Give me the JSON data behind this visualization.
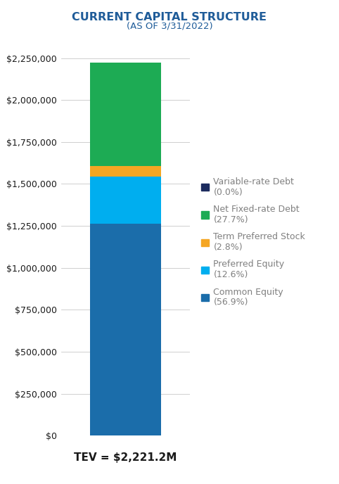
{
  "title": "CURRENT CAPITAL STRUCTURE",
  "subtitle": "(AS OF 3/31/2022)",
  "xlabel": "TEV = $2,221.2M",
  "title_color": "#1F5C99",
  "subtitle_color": "#1F5C99",
  "xlabel_color": "#1a1a1a",
  "ylim": [
    0,
    2250000
  ],
  "yticks": [
    0,
    250000,
    500000,
    750000,
    1000000,
    1250000,
    1500000,
    1750000,
    2000000,
    2250000
  ],
  "segments": [
    {
      "label": "Common Equity\n(56.9%)",
      "value": 1264165,
      "color": "#1B6DAA"
    },
    {
      "label": "Preferred Equity\n(12.6%)",
      "value": 279871,
      "color": "#00AEEF"
    },
    {
      "label": "Term Preferred Stock\n(2.8%)",
      "value": 62194,
      "color": "#F5A623"
    },
    {
      "label": "Net Fixed-rate Debt\n(27.7%)",
      "value": 615272,
      "color": "#1DAB54"
    },
    {
      "label": "Variable-rate Debt\n(0.0%)",
      "value": 800,
      "color": "#1C2B5E"
    }
  ],
  "legend_colors": [
    "#1C2B5E",
    "#1DAB54",
    "#F5A623",
    "#00AEEF",
    "#1B6DAA"
  ],
  "legend_labels": [
    "Variable-rate Debt\n(0.0%)",
    "Net Fixed-rate Debt\n(27.7%)",
    "Term Preferred Stock\n(2.8%)",
    "Preferred Equity\n(12.6%)",
    "Common Equity\n(56.9%)"
  ],
  "legend_text_color": "#808080",
  "background_color": "#FFFFFF",
  "bar_width": 0.55,
  "tick_label_color": "#1a1a1a",
  "grid_color": "#C8C8C8"
}
